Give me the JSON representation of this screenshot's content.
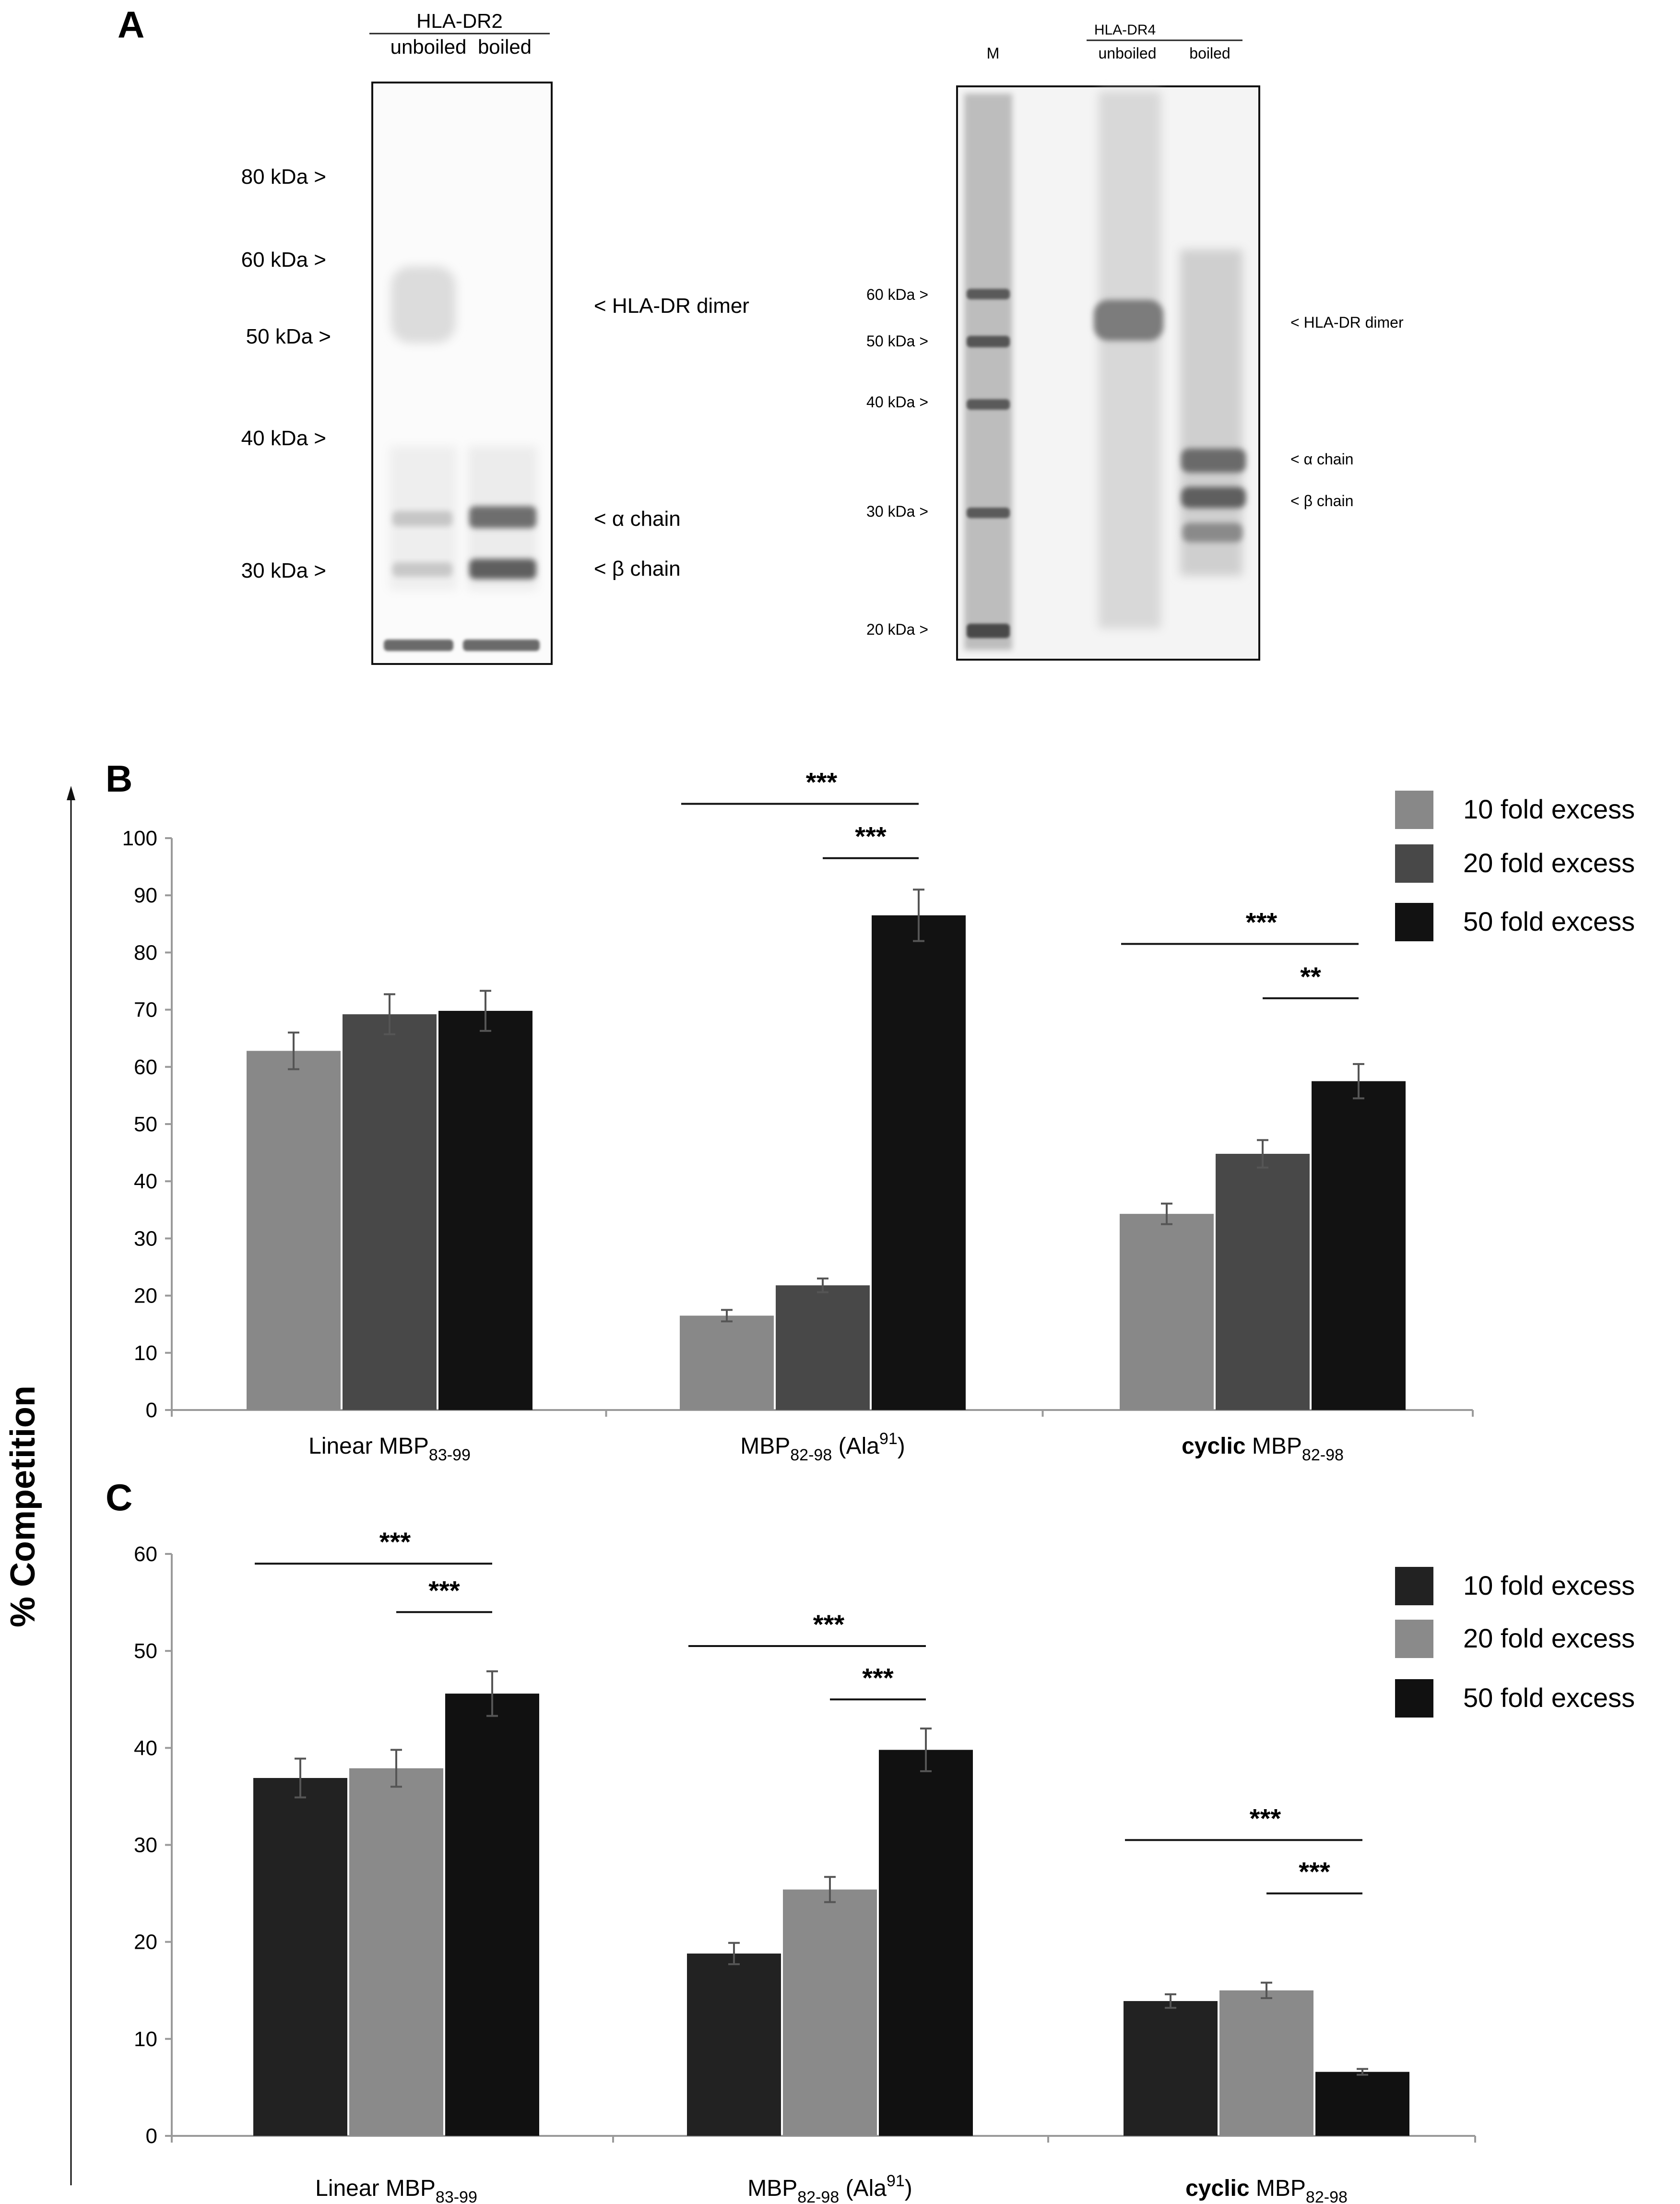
{
  "panelA": {
    "label": "A",
    "gel1": {
      "header": "HLA-DR2",
      "lanes": [
        "unboiled",
        "boiled"
      ],
      "markers": [
        "80 kDa >",
        "60 kDa >",
        "50 kDa >",
        "40 kDa >",
        "30 kDa >"
      ],
      "annotations": [
        "< HLA-DR dimer",
        "< α chain",
        "< β chain"
      ]
    },
    "gel2": {
      "header": "HLA-DR4",
      "lanes": [
        "M",
        "unboiled",
        "boiled"
      ],
      "markers": [
        "60 kDa >",
        "50 kDa >",
        "40 kDa >",
        "30 kDa >",
        "20 kDa >"
      ],
      "annotations": [
        "< HLA-DR dimer",
        "< α chain",
        "< β chain"
      ]
    }
  },
  "shared_ylabel": "% Competition",
  "chart_data": [
    {
      "panel": "B",
      "type": "bar",
      "title": "",
      "ylabel": "% Competition",
      "ylim": [
        0,
        100
      ],
      "yticks": [
        0,
        10,
        20,
        30,
        40,
        50,
        60,
        70,
        80,
        90,
        100
      ],
      "categories": [
        {
          "pre": "Linear ",
          "main": "MBP",
          "sub": "83-99",
          "post": ""
        },
        {
          "pre": "",
          "main": "MBP",
          "sub": "82-98",
          "post": " (Ala",
          "sup": "91",
          "post2": ")"
        },
        {
          "bold": "cyclic",
          "pre": " ",
          "main": "MBP",
          "sub": "82-98",
          "post": ""
        }
      ],
      "series": [
        {
          "name": "10 fold excess",
          "color": "#888888",
          "values": [
            62.8,
            16.5,
            34.3
          ],
          "errors": [
            3.2,
            1.0,
            1.8
          ]
        },
        {
          "name": "20 fold excess",
          "color": "#484848",
          "values": [
            69.2,
            21.8,
            44.8
          ],
          "errors": [
            3.5,
            1.2,
            2.4
          ]
        },
        {
          "name": "50 fold excess",
          "color": "#121212",
          "values": [
            69.8,
            86.5,
            57.5
          ],
          "errors": [
            3.5,
            4.5,
            3.0
          ]
        }
      ],
      "significance": [
        {
          "group": 1,
          "from": 0,
          "to": 2,
          "label": "***",
          "level": 106
        },
        {
          "group": 1,
          "from": 1,
          "to": 2,
          "label": "***",
          "level": 96.5
        },
        {
          "group": 2,
          "from": 0,
          "to": 2,
          "label": "***",
          "level": 81.5
        },
        {
          "group": 2,
          "from": 1,
          "to": 2,
          "label": "**",
          "level": 72
        }
      ]
    },
    {
      "panel": "C",
      "type": "bar",
      "title": "",
      "ylabel": "% Competition",
      "ylim": [
        0,
        60
      ],
      "yticks": [
        0,
        10,
        20,
        30,
        40,
        50,
        60
      ],
      "categories": [
        {
          "pre": "Linear ",
          "main": "MBP",
          "sub": "83-99",
          "post": ""
        },
        {
          "pre": "",
          "main": "MBP",
          "sub": "82-98",
          "post": " (Ala",
          "sup": "91",
          "post2": ")"
        },
        {
          "bold": "cyclic",
          "pre": " ",
          "main": "MBP",
          "sub": "82-98",
          "post": ""
        }
      ],
      "series": [
        {
          "name": "10 fold excess",
          "color": "#222222",
          "values": [
            36.9,
            18.8,
            13.9
          ],
          "errors": [
            2.0,
            1.1,
            0.7
          ]
        },
        {
          "name": "20 fold excess",
          "color": "#8a8a8a",
          "values": [
            37.9,
            25.4,
            15.0
          ],
          "errors": [
            1.9,
            1.3,
            0.8
          ]
        },
        {
          "name": "50 fold excess",
          "color": "#111111",
          "values": [
            45.6,
            39.8,
            6.6
          ],
          "errors": [
            2.3,
            2.2,
            0.3
          ]
        }
      ],
      "significance": [
        {
          "group": 0,
          "from": 0,
          "to": 2,
          "label": "***",
          "level": 59.0
        },
        {
          "group": 0,
          "from": 1,
          "to": 2,
          "label": "***",
          "level": 54.0
        },
        {
          "group": 1,
          "from": 0,
          "to": 2,
          "label": "***",
          "level": 50.5
        },
        {
          "group": 1,
          "from": 1,
          "to": 2,
          "label": "***",
          "level": 45.0
        },
        {
          "group": 2,
          "from": 0,
          "to": 2,
          "label": "***",
          "level": 30.5
        },
        {
          "group": 2,
          "from": 1,
          "to": 2,
          "label": "***",
          "level": 25.0
        }
      ]
    }
  ]
}
